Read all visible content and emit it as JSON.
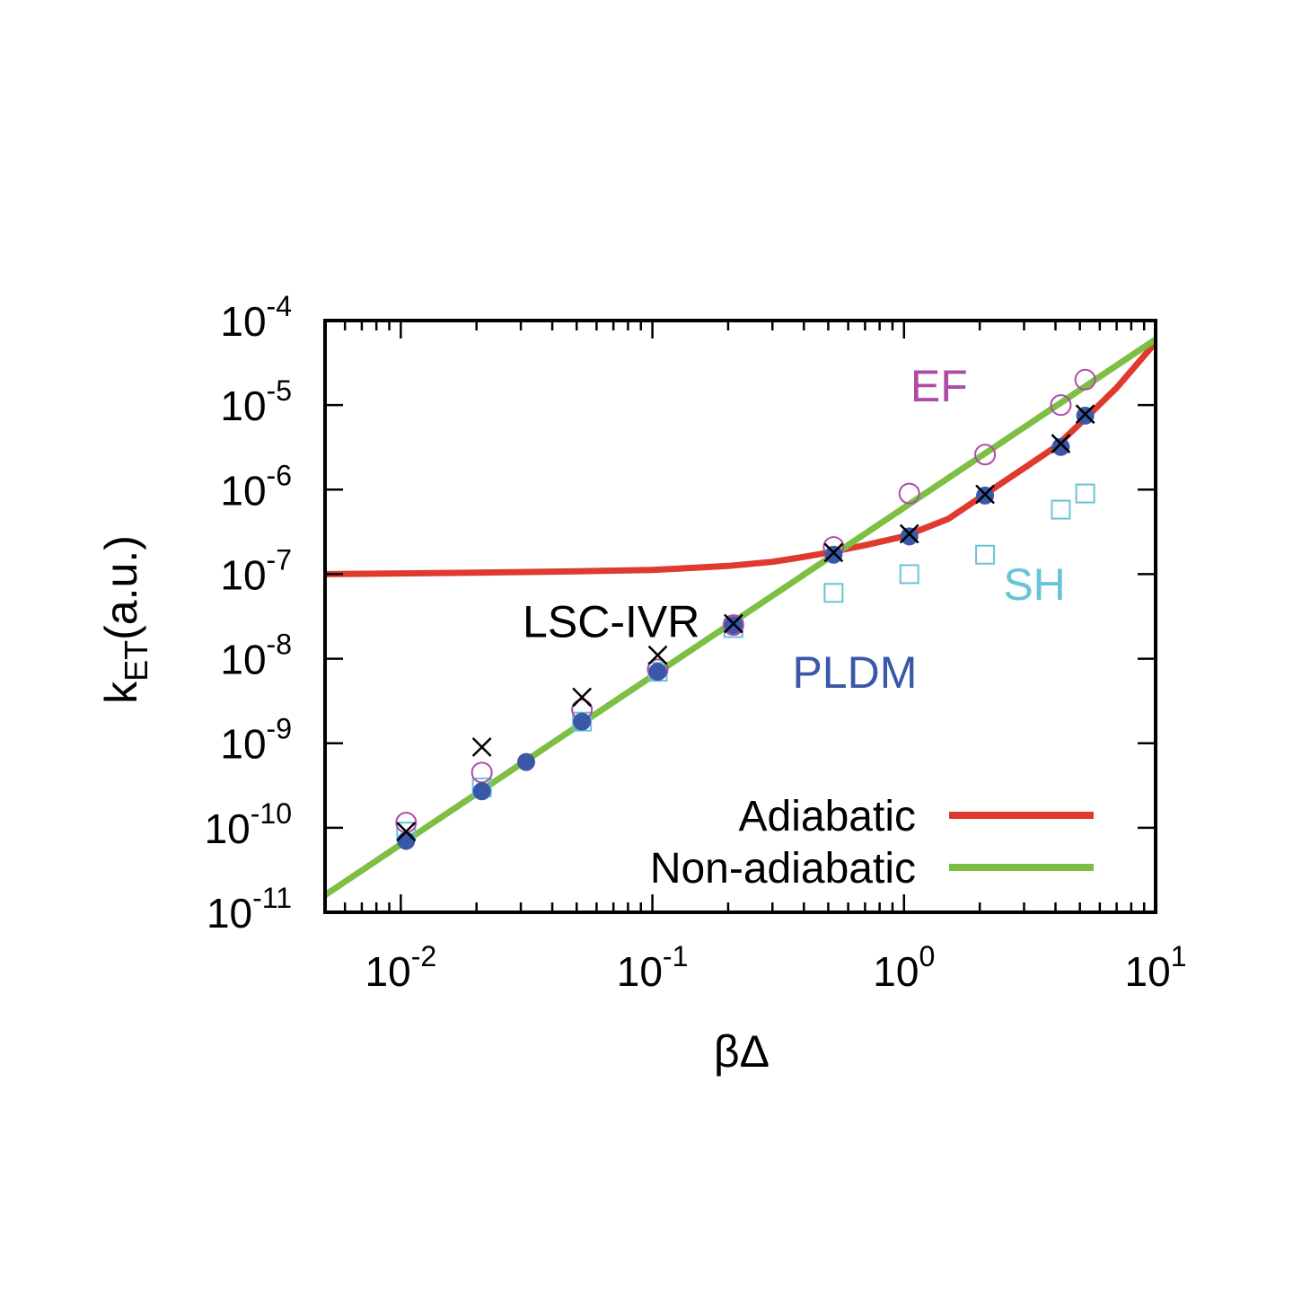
{
  "chart_data": {
    "type": "scatter",
    "title": "",
    "xlabel": "βΔ",
    "ylabel": {
      "main": "k",
      "sub": "ET",
      "tail": "(a.u.)"
    },
    "x_scale": "log",
    "y_scale": "log",
    "xlim": [
      0.005,
      10
    ],
    "ylim": [
      1e-11,
      0.0001
    ],
    "x_ticks": [
      {
        "value": 0.01,
        "base": "10",
        "exp": "-2"
      },
      {
        "value": 0.1,
        "base": "10",
        "exp": "-1"
      },
      {
        "value": 1,
        "base": "10",
        "exp": "0"
      },
      {
        "value": 10,
        "base": "10",
        "exp": "1"
      }
    ],
    "y_ticks": [
      {
        "value": 0.0001,
        "base": "10",
        "exp": "-4"
      },
      {
        "value": 1e-05,
        "base": "10",
        "exp": "-5"
      },
      {
        "value": 1e-06,
        "base": "10",
        "exp": "-6"
      },
      {
        "value": 1e-07,
        "base": "10",
        "exp": "-7"
      },
      {
        "value": 1e-08,
        "base": "10",
        "exp": "-8"
      },
      {
        "value": 1e-09,
        "base": "10",
        "exp": "-9"
      },
      {
        "value": 1e-10,
        "base": "10",
        "exp": "-10"
      },
      {
        "value": 1e-11,
        "base": "10",
        "exp": "-11"
      }
    ],
    "grid": false,
    "legend_position": "bottom-right",
    "lines": [
      {
        "name": "Adiabatic",
        "color": "#e03a2e",
        "x": [
          0.005,
          0.01,
          0.02,
          0.05,
          0.1,
          0.2,
          0.3,
          0.4,
          0.5,
          0.7,
          1.0,
          1.5,
          2.0,
          3.0,
          4.0,
          5.0,
          7.0,
          10.0
        ],
        "y": [
          1e-07,
          1.02e-07,
          1.04e-07,
          1.08e-07,
          1.12e-07,
          1.25e-07,
          1.4e-07,
          1.6e-07,
          1.8e-07,
          2.2e-07,
          2.8e-07,
          4.5e-07,
          8e-07,
          1.8e-06,
          3.2e-06,
          6e-06,
          1.6e-05,
          5.5e-05
        ]
      },
      {
        "name": "Non-adiabatic",
        "color": "#7dbf42",
        "x": [
          0.005,
          10.0
        ],
        "y": [
          1.6e-11,
          6e-05
        ]
      }
    ],
    "series": [
      {
        "name": "PLDM",
        "marker": "filled-circle",
        "color": "#3a57a8",
        "x": [
          0.0105,
          0.021,
          0.0315,
          0.0525,
          0.105,
          0.21,
          0.525,
          1.05,
          2.1,
          4.2,
          5.25
        ],
        "y": [
          7e-11,
          2.7e-10,
          6e-10,
          1.8e-09,
          7e-09,
          2.5e-08,
          1.7e-07,
          2.8e-07,
          8.5e-07,
          3.2e-06,
          7.5e-06
        ]
      },
      {
        "name": "LSC-IVR",
        "marker": "cross",
        "color": "#000000",
        "x": [
          0.0105,
          0.021,
          0.0525,
          0.105,
          0.21,
          0.525,
          1.05,
          2.1,
          4.2,
          5.25
        ],
        "y": [
          9e-11,
          9e-10,
          3.5e-09,
          1.1e-08,
          2.6e-08,
          1.8e-07,
          3e-07,
          8.8e-07,
          3.5e-06,
          7.8e-06
        ]
      },
      {
        "name": "EF",
        "marker": "open-circle",
        "color": "#b04aa6",
        "x": [
          0.0105,
          0.021,
          0.0525,
          0.105,
          0.21,
          0.525,
          1.05,
          2.1,
          4.2,
          5.25
        ],
        "y": [
          1.15e-10,
          4.5e-10,
          2.5e-09,
          7.5e-09,
          2.5e-08,
          2.1e-07,
          9e-07,
          2.6e-06,
          1e-05,
          2e-05
        ]
      },
      {
        "name": "SH",
        "marker": "open-square",
        "color": "#66c4d6",
        "x": [
          0.0105,
          0.021,
          0.0525,
          0.105,
          0.21,
          0.525,
          1.05,
          2.1,
          4.2,
          5.25
        ],
        "y": [
          9e-11,
          3e-10,
          1.8e-09,
          7e-09,
          2.3e-08,
          6e-08,
          1e-07,
          1.7e-07,
          5.8e-07,
          9e-07
        ]
      }
    ],
    "annotations": [
      {
        "text": "EF",
        "color": "#b04aa6",
        "x": 1.06,
        "y": 1.1e-05
      },
      {
        "text": "SH",
        "color": "#66c4d6",
        "x": 2.48,
        "y": 5e-08
      },
      {
        "text": "LSC-IVR",
        "color": "#000000",
        "x": 0.0305,
        "y": 1.8e-08
      },
      {
        "text": "PLDM",
        "color": "#3a57a8",
        "x": 0.36,
        "y": 4.5e-09
      }
    ],
    "legend": [
      {
        "label": "Adiabatic",
        "color": "#e03a2e"
      },
      {
        "label": "Non-adiabatic",
        "color": "#7dbf42"
      }
    ]
  }
}
